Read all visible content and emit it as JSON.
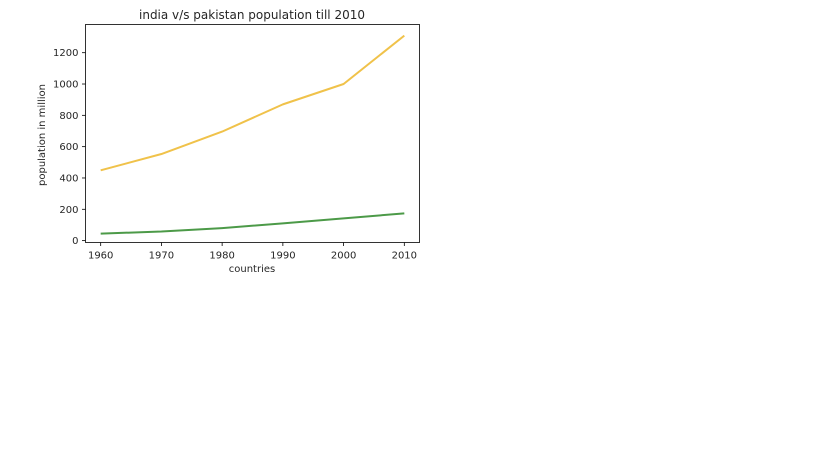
{
  "chart_data": {
    "type": "line",
    "title": "india v/s pakistan population till 2010",
    "xlabel": "countries",
    "ylabel": "population in million",
    "x": [
      1960,
      1970,
      1980,
      1990,
      2000,
      2010
    ],
    "x_ticks": [
      "1960",
      "1970",
      "1980",
      "1990",
      "2000",
      "2010"
    ],
    "y_ticks": [
      "0",
      "200",
      "400",
      "600",
      "800",
      "1000",
      "1200"
    ],
    "xlim": [
      1957.5,
      2012.5
    ],
    "ylim": [
      -12,
      1380
    ],
    "grid": false,
    "series": [
      {
        "values": [
          449,
          553,
          696,
          870,
          1000,
          1309
        ],
        "color": "#f0c24a"
      },
      {
        "values": [
          45,
          58,
          80,
          110,
          142,
          174
        ],
        "color": "#4c9a48"
      }
    ]
  }
}
